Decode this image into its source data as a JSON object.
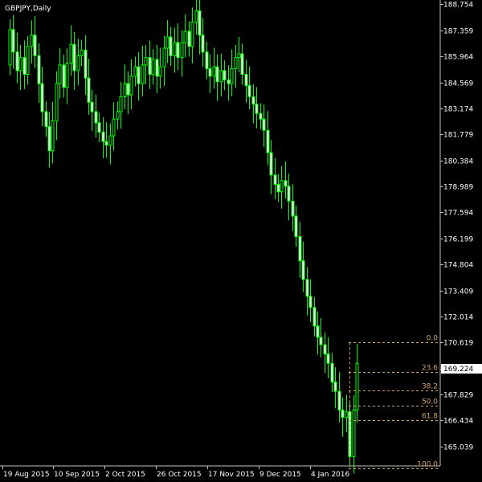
{
  "chart_data": {
    "type": "candlestick",
    "symbol_label": "GBPJPY,Daily",
    "ylim": [
      164.0,
      188.9
    ],
    "y_ticks": [
      "188.754",
      "187.359",
      "185.964",
      "184.569",
      "183.174",
      "181.779",
      "180.384",
      "178.989",
      "177.594",
      "176.199",
      "174.804",
      "173.409",
      "172.014",
      "170.619",
      "169.224",
      "167.829",
      "166.434",
      "165.039"
    ],
    "x_ticks": [
      "19 Aug 2015",
      "10 Sep 2015",
      "2 Oct 2015",
      "26 Oct 2015",
      "17 Nov 2015",
      "9 Dec 2015",
      "4 Jan 2016"
    ],
    "current_price": "169.224",
    "fibonacci": {
      "high": 170.62,
      "low": 163.85,
      "levels": [
        "0.0",
        "23.6",
        "38.2",
        "50.0",
        "61.8",
        "100.0"
      ],
      "ratios": [
        0,
        0.236,
        0.382,
        0.5,
        0.618,
        1.0
      ]
    },
    "closes": [
      187.4,
      186.2,
      185.2,
      185.9,
      185.0,
      186.5,
      187.1,
      186.0,
      184.5,
      183.0,
      182.2,
      180.9,
      182.5,
      184.5,
      185.5,
      184.3,
      185.6,
      186.6,
      185.2,
      186.0,
      186.3,
      184.8,
      183.5,
      183.0,
      182.4,
      181.9,
      181.4,
      181.2,
      181.7,
      182.6,
      183.0,
      183.8,
      184.5,
      183.9,
      184.9,
      185.4,
      184.5,
      185.5,
      185.9,
      185.0,
      185.8,
      184.9,
      185.4,
      186.4,
      187.0,
      186.0,
      186.7,
      185.9,
      186.7,
      187.3,
      186.5,
      187.8,
      188.4,
      187.1,
      186.2,
      185.3,
      184.9,
      185.4,
      184.6,
      185.2,
      184.7,
      184.5,
      185.3,
      185.9,
      186.1,
      185.0,
      184.4,
      183.8,
      183.4,
      182.9,
      182.6,
      182.0,
      180.8,
      179.6,
      179.1,
      178.7,
      179.3,
      179.0,
      178.2,
      177.4,
      176.3,
      175.0,
      174.0,
      173.1,
      172.5,
      171.5,
      170.9,
      170.5,
      170.0,
      169.5,
      168.5,
      168.0,
      167.0,
      166.6,
      166.9,
      164.5,
      167.0,
      169.5
    ]
  }
}
